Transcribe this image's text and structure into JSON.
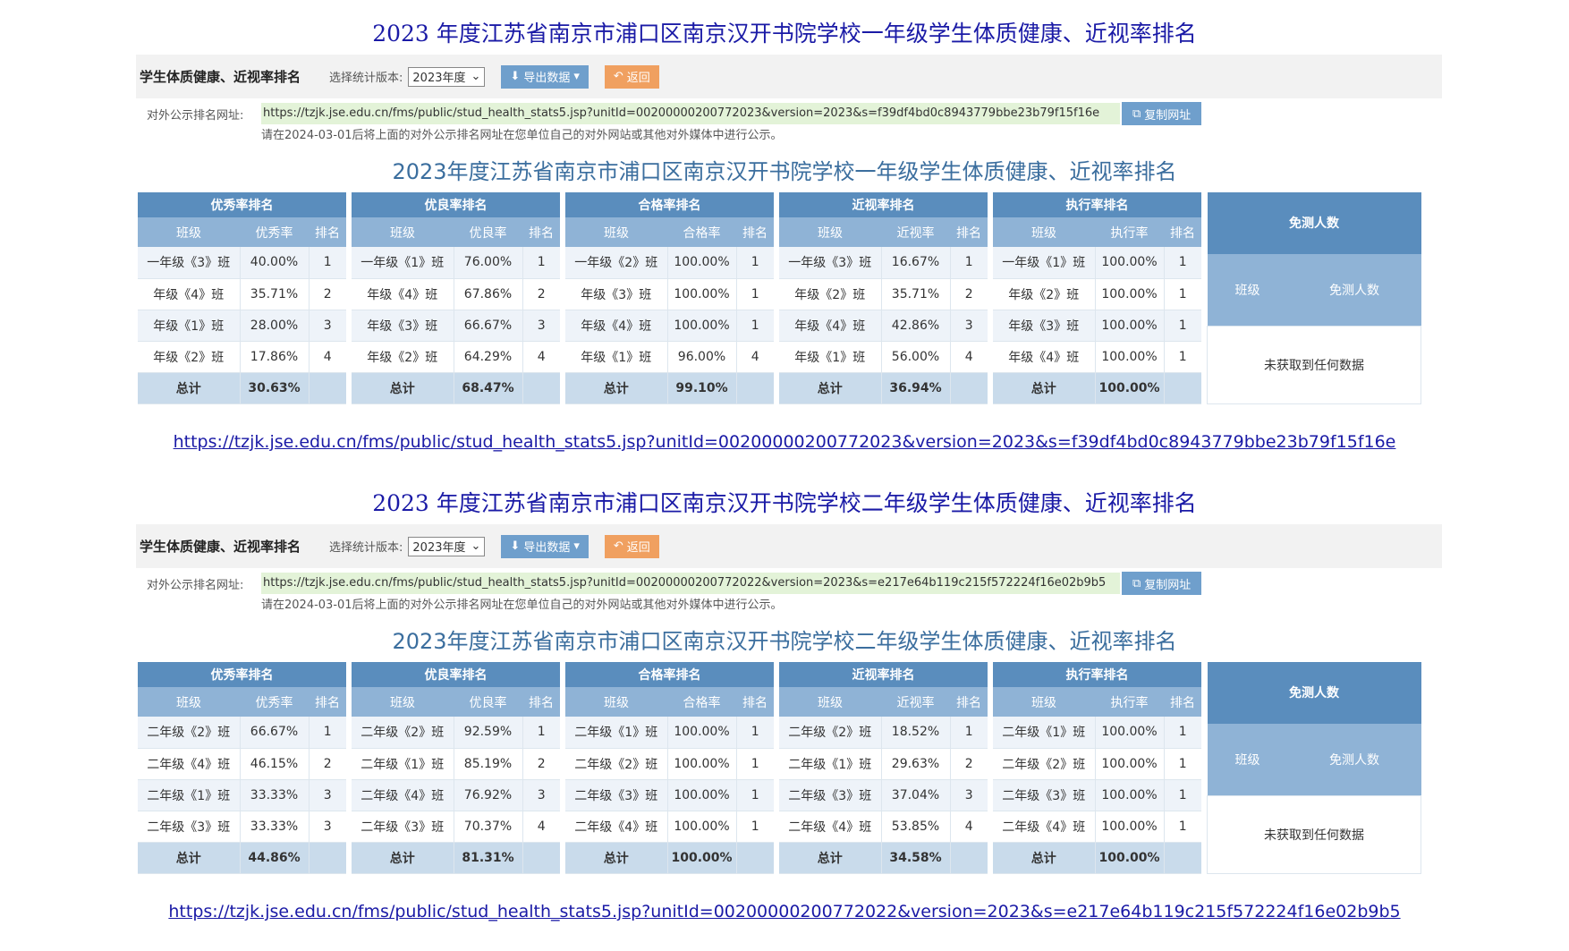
{
  "sections": [
    {
      "heading": "2023 年度江苏省南京市浦口区南京汉开书院学校一年级学生体质健康、近视率排名",
      "toolbar": {
        "title": "学生体质健康、近视率排名",
        "version_label": "选择统计版本:",
        "version_value": "2023年度",
        "export_label": "导出数据",
        "back_label": "返回"
      },
      "url_label": "对外公示排名网址:",
      "url": "https://tzjk.jse.edu.cn/fms/public/stud_health_stats5.jsp?unitId=00200000200772023&version=2023&s=f39df4bd0c8943779bbe23b79f15f16e",
      "copy_label": "复制网址",
      "notice": "请在2024-03-01后将上面的对外公示排名网址在您单位自己的对外网站或其他对外媒体中进行公示。",
      "title": "2023年度江苏省南京市浦口区南京汉开书院学校一年级学生体质健康、近视率排名",
      "tables": [
        {
          "header": "优秀率排名",
          "cols": [
            "班级",
            "优秀率",
            "排名"
          ],
          "rows": [
            [
              "一年级《3》班",
              "40.00%",
              "1"
            ],
            [
              "年级《4》班",
              "35.71%",
              "2"
            ],
            [
              "年级《1》班",
              "28.00%",
              "3"
            ],
            [
              "年级《2》班",
              "17.86%",
              "4"
            ]
          ],
          "total": [
            "总计",
            "30.63%",
            ""
          ]
        },
        {
          "header": "优良率排名",
          "cols": [
            "班级",
            "优良率",
            "排名"
          ],
          "rows": [
            [
              "一年级《1》班",
              "76.00%",
              "1"
            ],
            [
              "年级《4》班",
              "67.86%",
              "2"
            ],
            [
              "年级《3》班",
              "66.67%",
              "3"
            ],
            [
              "年级《2》班",
              "64.29%",
              "4"
            ]
          ],
          "total": [
            "总计",
            "68.47%",
            ""
          ]
        },
        {
          "header": "合格率排名",
          "cols": [
            "班级",
            "合格率",
            "排名"
          ],
          "rows": [
            [
              "一年级《2》班",
              "100.00%",
              "1"
            ],
            [
              "年级《3》班",
              "100.00%",
              "1"
            ],
            [
              "年级《4》班",
              "100.00%",
              "1"
            ],
            [
              "年级《1》班",
              "96.00%",
              "4"
            ]
          ],
          "total": [
            "总计",
            "99.10%",
            ""
          ]
        },
        {
          "header": "近视率排名",
          "cols": [
            "班级",
            "近视率",
            "排名"
          ],
          "rows": [
            [
              "一年级《3》班",
              "16.67%",
              "1"
            ],
            [
              "年级《2》班",
              "35.71%",
              "2"
            ],
            [
              "年级《4》班",
              "42.86%",
              "3"
            ],
            [
              "年级《1》班",
              "56.00%",
              "4"
            ]
          ],
          "total": [
            "总计",
            "36.94%",
            ""
          ]
        },
        {
          "header": "执行率排名",
          "cols": [
            "班级",
            "执行率",
            "排名"
          ],
          "rows": [
            [
              "一年级《1》班",
              "100.00%",
              "1"
            ],
            [
              "年级《2》班",
              "100.00%",
              "1"
            ],
            [
              "年级《3》班",
              "100.00%",
              "1"
            ],
            [
              "年级《4》班",
              "100.00%",
              "1"
            ]
          ],
          "total": [
            "总计",
            "100.00%",
            ""
          ]
        }
      ],
      "exempt": {
        "header": "免测人数",
        "cols": [
          "班级",
          "免测人数"
        ],
        "empty": "未获取到任何数据"
      },
      "link": "https://tzjk.jse.edu.cn/fms/public/stud_health_stats5.jsp?unitId=00200000200772023&version=2023&s=f39df4bd0c8943779bbe23b79f15f16e"
    },
    {
      "heading": "2023 年度江苏省南京市浦口区南京汉开书院学校二年级学生体质健康、近视率排名",
      "toolbar": {
        "title": "学生体质健康、近视率排名",
        "version_label": "选择统计版本:",
        "version_value": "2023年度",
        "export_label": "导出数据",
        "back_label": "返回"
      },
      "url_label": "对外公示排名网址:",
      "url": "https://tzjk.jse.edu.cn/fms/public/stud_health_stats5.jsp?unitId=00200000200772022&version=2023&s=e217e64b119c215f572224f16e02b9b5",
      "copy_label": "复制网址",
      "notice": "请在2024-03-01后将上面的对外公示排名网址在您单位自己的对外网站或其他对外媒体中进行公示。",
      "title": "2023年度江苏省南京市浦口区南京汉开书院学校二年级学生体质健康、近视率排名",
      "tables": [
        {
          "header": "优秀率排名",
          "cols": [
            "班级",
            "优秀率",
            "排名"
          ],
          "rows": [
            [
              "二年级《2》班",
              "66.67%",
              "1"
            ],
            [
              "二年级《4》班",
              "46.15%",
              "2"
            ],
            [
              "二年级《1》班",
              "33.33%",
              "3"
            ],
            [
              "二年级《3》班",
              "33.33%",
              "3"
            ]
          ],
          "total": [
            "总计",
            "44.86%",
            ""
          ]
        },
        {
          "header": "优良率排名",
          "cols": [
            "班级",
            "优良率",
            "排名"
          ],
          "rows": [
            [
              "二年级《2》班",
              "92.59%",
              "1"
            ],
            [
              "二年级《1》班",
              "85.19%",
              "2"
            ],
            [
              "二年级《4》班",
              "76.92%",
              "3"
            ],
            [
              "二年级《3》班",
              "70.37%",
              "4"
            ]
          ],
          "total": [
            "总计",
            "81.31%",
            ""
          ]
        },
        {
          "header": "合格率排名",
          "cols": [
            "班级",
            "合格率",
            "排名"
          ],
          "rows": [
            [
              "二年级《1》班",
              "100.00%",
              "1"
            ],
            [
              "二年级《2》班",
              "100.00%",
              "1"
            ],
            [
              "二年级《3》班",
              "100.00%",
              "1"
            ],
            [
              "二年级《4》班",
              "100.00%",
              "1"
            ]
          ],
          "total": [
            "总计",
            "100.00%",
            ""
          ]
        },
        {
          "header": "近视率排名",
          "cols": [
            "班级",
            "近视率",
            "排名"
          ],
          "rows": [
            [
              "二年级《2》班",
              "18.52%",
              "1"
            ],
            [
              "二年级《1》班",
              "29.63%",
              "2"
            ],
            [
              "二年级《3》班",
              "37.04%",
              "3"
            ],
            [
              "二年级《4》班",
              "53.85%",
              "4"
            ]
          ],
          "total": [
            "总计",
            "34.58%",
            ""
          ]
        },
        {
          "header": "执行率排名",
          "cols": [
            "班级",
            "执行率",
            "排名"
          ],
          "rows": [
            [
              "二年级《1》班",
              "100.00%",
              "1"
            ],
            [
              "二年级《2》班",
              "100.00%",
              "1"
            ],
            [
              "二年级《3》班",
              "100.00%",
              "1"
            ],
            [
              "二年级《4》班",
              "100.00%",
              "1"
            ]
          ],
          "total": [
            "总计",
            "100.00%",
            ""
          ]
        }
      ],
      "exempt": {
        "header": "免测人数",
        "cols": [
          "班级",
          "免测人数"
        ],
        "empty": "未获取到任何数据"
      },
      "link": "https://tzjk.jse.edu.cn/fms/public/stud_health_stats5.jsp?unitId=00200000200772022&version=2023&s=e217e64b119c215f572224f16e02b9b5"
    }
  ]
}
